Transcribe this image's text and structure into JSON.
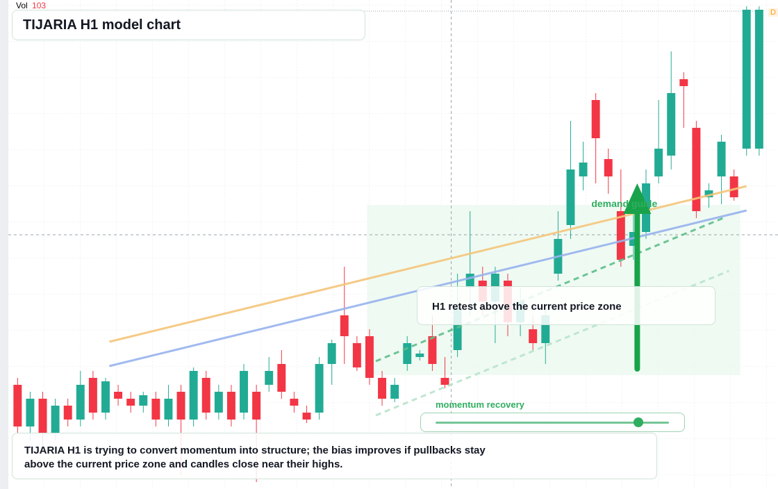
{
  "chart_data": {
    "type": "candlestick",
    "title": "TIJARIA H1 model chart",
    "volume_label": "Vol",
    "volume_value": 103,
    "corner_tag": "D",
    "up_color": "#22ab94",
    "down_color": "#f23645",
    "xlim": [
      -1.4,
      60.5
    ],
    "ylim": [
      0,
      70.4
    ],
    "open": [
      15,
      9,
      13,
      8,
      12,
      10,
      16,
      11,
      14,
      13,
      12,
      13,
      10,
      14,
      10,
      16,
      11,
      14,
      11,
      14,
      15,
      18,
      13,
      11,
      11,
      18,
      25,
      21,
      22,
      16,
      13,
      18,
      19,
      22,
      16,
      20,
      29,
      30,
      27,
      30,
      24,
      23,
      21,
      31,
      38,
      45,
      56,
      47.5,
      40,
      35,
      37,
      45,
      48,
      59,
      52,
      42,
      45,
      45,
      49,
      49
    ],
    "high": [
      16,
      14,
      14,
      13,
      13,
      17,
      17,
      16,
      15,
      14,
      14,
      14,
      15,
      15,
      17.5,
      17,
      15,
      15,
      18,
      15,
      19,
      20,
      14,
      12,
      19,
      21.5,
      32,
      22,
      23,
      17,
      16,
      22,
      20,
      25,
      19,
      31,
      40,
      32,
      32,
      31,
      29,
      25,
      26,
      40,
      53,
      50,
      57,
      49,
      46,
      42,
      46,
      56,
      63,
      60,
      53,
      44,
      51,
      46,
      69.5,
      69.5
    ],
    "low": [
      8,
      7,
      6,
      7,
      9,
      9,
      10,
      10,
      12,
      11,
      11,
      9,
      9,
      2,
      9,
      10,
      10,
      9,
      10,
      1,
      14,
      13,
      11,
      9.5,
      10,
      15,
      18,
      17,
      15,
      12,
      12.5,
      17,
      18.5,
      17,
      14.5,
      19,
      25,
      25,
      21,
      22,
      22,
      20,
      18,
      30,
      36,
      43,
      44,
      42.5,
      32,
      33,
      36,
      44,
      46,
      52,
      39,
      40.5,
      41,
      41.5,
      48,
      48
    ],
    "close": [
      9,
      13,
      8,
      12,
      10,
      15,
      11,
      15.5,
      13,
      12,
      13.5,
      10,
      13,
      10,
      17,
      11,
      14,
      10,
      17,
      10,
      17,
      14,
      12,
      10,
      18,
      21,
      22,
      17.5,
      16,
      13,
      15,
      21,
      19.5,
      18,
      15,
      26,
      31,
      27,
      31,
      24,
      27,
      21,
      25,
      36,
      46,
      47,
      50.5,
      45,
      33,
      37,
      44,
      49,
      57,
      58,
      40,
      43,
      50,
      42,
      69,
      69
    ],
    "trendlines": [
      {
        "color": "#f5c57a",
        "x": [
          7.3,
          58.0
        ],
        "y": [
          21.2,
          43.6
        ]
      },
      {
        "color": "#97b3ee",
        "x": [
          7.3,
          58.0
        ],
        "y": [
          17.7,
          40.1
        ]
      },
      {
        "color": "#5ebf8a",
        "dashed": true,
        "x": [
          28.5,
          56.4
        ],
        "y": [
          18.4,
          39.2
        ]
      },
      {
        "color": "#b9e4cc",
        "dashed": true,
        "x": [
          28.5,
          56.6
        ],
        "y": [
          10.6,
          31.4
        ]
      }
    ],
    "zone": {
      "label": "demand guide",
      "x": [
        27.8,
        57.5
      ],
      "y": [
        16.4,
        40.9
      ]
    },
    "arrow": {
      "x": 49.3,
      "y": [
        17.3,
        44
      ]
    },
    "crosshair": {
      "x": 34.5,
      "y": 36.6
    },
    "callout": "H1 retest above the current price zone",
    "momentum": {
      "label": "momentum recovery",
      "value": 87
    },
    "note": "TIJARIA H1 is trying to convert momentum into structure; the bias improves if pullbacks stay above the current price zone and candles close near their highs."
  }
}
